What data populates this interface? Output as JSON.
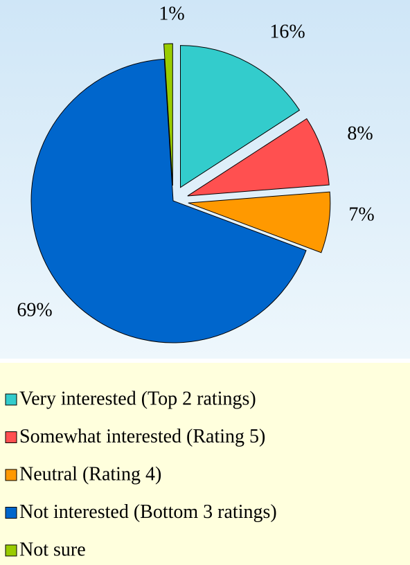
{
  "chart_data": {
    "type": "pie",
    "categories": [
      "Very interested (Top 2 ratings)",
      "Somewhat interested (Rating 5)",
      "Neutral (Rating 4)",
      "Not interested (Bottom 3 ratings)",
      "Not sure"
    ],
    "values": [
      16,
      8,
      7,
      69,
      1
    ],
    "value_labels": [
      "16%",
      "8%",
      "7%",
      "69%",
      "1%"
    ],
    "colors": [
      "#33cccc",
      "#ff5050",
      "#ff9900",
      "#0066cc",
      "#99cc00"
    ],
    "legend": "bottom"
  }
}
